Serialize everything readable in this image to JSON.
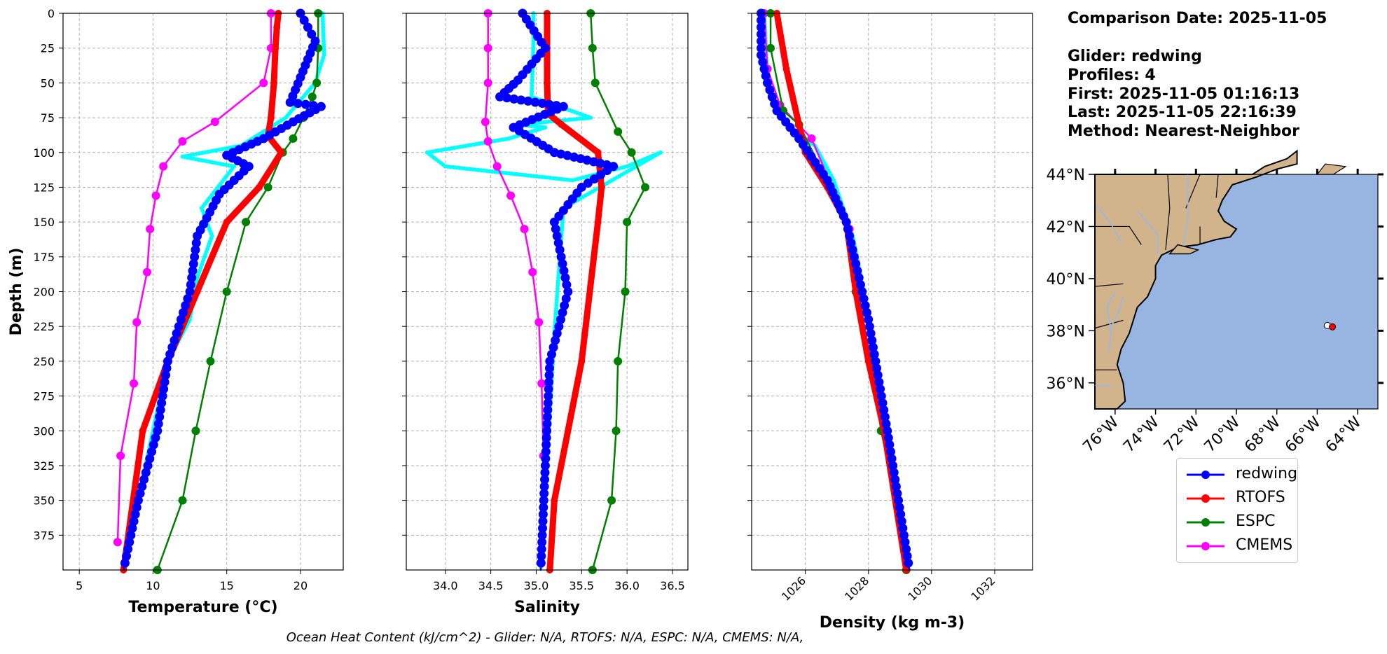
{
  "info": {
    "comparison_date": "Comparison Date: 2025-11-05",
    "glider": "Glider: redwing",
    "profiles": "Profiles: 4",
    "first": "First: 2025-11-05 01:16:13",
    "last": "Last: 2025-11-05 22:16:39",
    "method": "Method: Nearest-Neighbor"
  },
  "footer": "Ocean Heat Content (kJ/cm^2) - Glider: N/A,  RTOFS: N/A,  ESPC: N/A,  CMEMS: N/A,",
  "colors": {
    "redwing": "#0000ff",
    "rtofs": "#ff0000",
    "espc": "#008000",
    "cmems": "#ff00ff",
    "glider_raw": "#00ffff",
    "land": "#d2b48c",
    "ocean": "#98b5e2"
  },
  "legend": [
    "redwing",
    "RTOFS",
    "ESPC",
    "CMEMS"
  ],
  "chart_data": [
    {
      "type": "line",
      "title": "",
      "xlabel": "Temperature (°C)",
      "ylabel": "Depth (m)",
      "xlim": [
        3.9,
        22.9
      ],
      "ylim": [
        400,
        0
      ],
      "xticks": [
        5,
        10,
        15,
        20
      ],
      "yticks": [
        0,
        25,
        50,
        75,
        100,
        125,
        150,
        175,
        200,
        225,
        250,
        275,
        300,
        325,
        350,
        375
      ],
      "grid": true,
      "series": [
        {
          "name": "RTOFS",
          "x": [
            18.5,
            18.4,
            18.3,
            18.2,
            18.0,
            17.8,
            18.7,
            17.2,
            15.0,
            13.0,
            11.0,
            9.3,
            8.0
          ],
          "y": [
            0,
            10,
            25,
            50,
            75,
            88,
            100,
            125,
            150,
            200,
            250,
            300,
            400
          ]
        },
        {
          "name": "ESPC",
          "x": [
            21.2,
            21.2,
            21.1,
            20.8,
            20.2,
            19.5,
            18.8,
            17.8,
            16.3,
            15.0,
            13.9,
            12.9,
            12.0,
            10.3
          ],
          "y": [
            0,
            25,
            50,
            60,
            75,
            90,
            100,
            125,
            150,
            200,
            250,
            300,
            350,
            400
          ]
        },
        {
          "name": "CMEMS",
          "x": [
            18.0,
            18.0,
            17.5,
            14.2,
            12.0,
            10.7,
            10.2,
            9.8,
            9.6,
            8.9,
            8.7,
            7.8,
            7.6
          ],
          "y": [
            0,
            25,
            50,
            78,
            92,
            110,
            131,
            155,
            186,
            222,
            266,
            318,
            380
          ]
        },
        {
          "name": "redwing",
          "x": [
            20.0,
            21.0,
            20.0,
            19.3,
            21.4,
            19.5,
            17.5,
            15.0,
            16.5,
            14.5,
            13.0,
            12.5,
            11.0,
            10.3,
            9.0,
            8.0
          ],
          "y": [
            0,
            20,
            46,
            64,
            67,
            78,
            90,
            102,
            110,
            130,
            160,
            200,
            250,
            300,
            350,
            400
          ]
        },
        {
          "name": "redwing_raw",
          "x": [
            21.5,
            21.6,
            21.0,
            19.0,
            16.0,
            12.0,
            15.5,
            13.3,
            14.0,
            13.0,
            12.5,
            11.0,
            10.0,
            9.0,
            8.0
          ],
          "y": [
            0,
            30,
            50,
            75,
            95,
            103,
            110,
            140,
            160,
            190,
            220,
            250,
            300,
            350,
            400
          ]
        }
      ]
    },
    {
      "type": "line",
      "title": "",
      "xlabel": "Salinity",
      "ylabel": "",
      "xlim": [
        33.57,
        36.67
      ],
      "ylim": [
        400,
        0
      ],
      "xticks": [
        34.0,
        34.5,
        35.0,
        35.5,
        36.0,
        36.5
      ],
      "grid": true,
      "series": [
        {
          "name": "RTOFS",
          "x": [
            35.12,
            35.12,
            35.12,
            35.13,
            35.28,
            35.68,
            35.72,
            35.68,
            35.5,
            35.2,
            35.15
          ],
          "y": [
            0,
            25,
            50,
            72,
            80,
            100,
            125,
            150,
            250,
            350,
            400
          ]
        },
        {
          "name": "ESPC",
          "x": [
            35.6,
            35.62,
            35.65,
            35.9,
            36.05,
            36.2,
            36.0,
            35.98,
            35.9,
            35.88,
            35.83,
            35.62
          ],
          "y": [
            0,
            25,
            50,
            85,
            100,
            125,
            150,
            200,
            250,
            300,
            350,
            400
          ]
        },
        {
          "name": "CMEMS",
          "x": [
            34.47,
            34.47,
            34.47,
            34.44,
            34.47,
            34.57,
            34.72,
            34.87,
            34.96,
            35.03,
            35.06,
            35.08
          ],
          "y": [
            0,
            25,
            50,
            78,
            92,
            110,
            131,
            155,
            186,
            222,
            266,
            318
          ]
        },
        {
          "name": "redwing",
          "x": [
            34.85,
            35.1,
            34.8,
            34.6,
            35.3,
            34.75,
            35.2,
            35.85,
            35.5,
            35.2,
            35.35,
            35.15,
            35.05
          ],
          "y": [
            0,
            25,
            48,
            60,
            67,
            82,
            100,
            110,
            125,
            150,
            200,
            250,
            400
          ]
        },
        {
          "name": "redwing_raw",
          "x": [
            34.97,
            34.97,
            34.95,
            35.6,
            34.8,
            35.1,
            34.7,
            33.8,
            34.0,
            35.4,
            36.0,
            36.37,
            35.3,
            35.2,
            35.05
          ],
          "y": [
            0,
            20,
            60,
            75,
            80,
            82,
            90,
            100,
            110,
            120,
            110,
            100,
            140,
            230,
            400
          ]
        }
      ]
    },
    {
      "type": "line",
      "title": "",
      "xlabel": "Density (kg m-3)",
      "ylabel": "",
      "xlim": [
        1024.3,
        1033.2
      ],
      "ylim": [
        400,
        0
      ],
      "xticks": [
        1026,
        1028,
        1030,
        1032
      ],
      "grid": true,
      "series": [
        {
          "name": "RTOFS",
          "x": [
            1025.1,
            1025.4,
            1025.8,
            1026.0,
            1026.7,
            1027.3,
            1027.6,
            1028.0,
            1028.5,
            1029.2
          ],
          "y": [
            0,
            40,
            80,
            100,
            125,
            150,
            200,
            250,
            300,
            400
          ]
        },
        {
          "name": "ESPC",
          "x": [
            1024.9,
            1024.9,
            1025.3,
            1025.8,
            1026.8,
            1027.3,
            1027.6,
            1028.1,
            1028.4,
            1028.9,
            1029.2
          ],
          "y": [
            0,
            25,
            70,
            80,
            125,
            150,
            200,
            250,
            300,
            350,
            400
          ]
        },
        {
          "name": "CMEMS",
          "x": [
            1024.7,
            1024.8,
            1025.2,
            1026.2,
            1027.4,
            1027.9,
            1028.3,
            1028.8,
            1029.1
          ],
          "y": [
            0,
            40,
            66,
            90,
            155,
            215,
            275,
            330,
            380
          ]
        },
        {
          "name": "redwing",
          "x": [
            1024.6,
            1024.6,
            1024.8,
            1025.1,
            1025.8,
            1026.7,
            1027.3,
            1028.0,
            1028.6,
            1029.3
          ],
          "y": [
            0,
            30,
            50,
            70,
            90,
            120,
            150,
            220,
            300,
            400
          ]
        },
        {
          "name": "redwing_raw",
          "x": [
            1024.7,
            1024.8,
            1025.4,
            1026.3,
            1026.9,
            1027.5,
            1028.2,
            1029.2
          ],
          "y": [
            0,
            50,
            80,
            95,
            120,
            160,
            240,
            400
          ]
        }
      ]
    },
    {
      "type": "map",
      "title": "",
      "lon_range": [
        -77.0,
        -63.0
      ],
      "lat_range": [
        35.0,
        44.0
      ],
      "lat_ticks": [
        "44°N",
        "42°N",
        "40°N",
        "38°N",
        "36°N"
      ],
      "lat_values": [
        44,
        42,
        40,
        38,
        36
      ],
      "lon_ticks": [
        "76°W",
        "74°W",
        "72°W",
        "70°W",
        "68°W",
        "66°W",
        "64°W"
      ],
      "lon_values": [
        -76,
        -74,
        -72,
        -70,
        -68,
        -66,
        -64
      ],
      "points": [
        {
          "name": "redwing",
          "lon": -65.5,
          "lat": 38.2
        },
        {
          "name": "RTOFS",
          "lon": -65.25,
          "lat": 38.15
        }
      ]
    }
  ]
}
